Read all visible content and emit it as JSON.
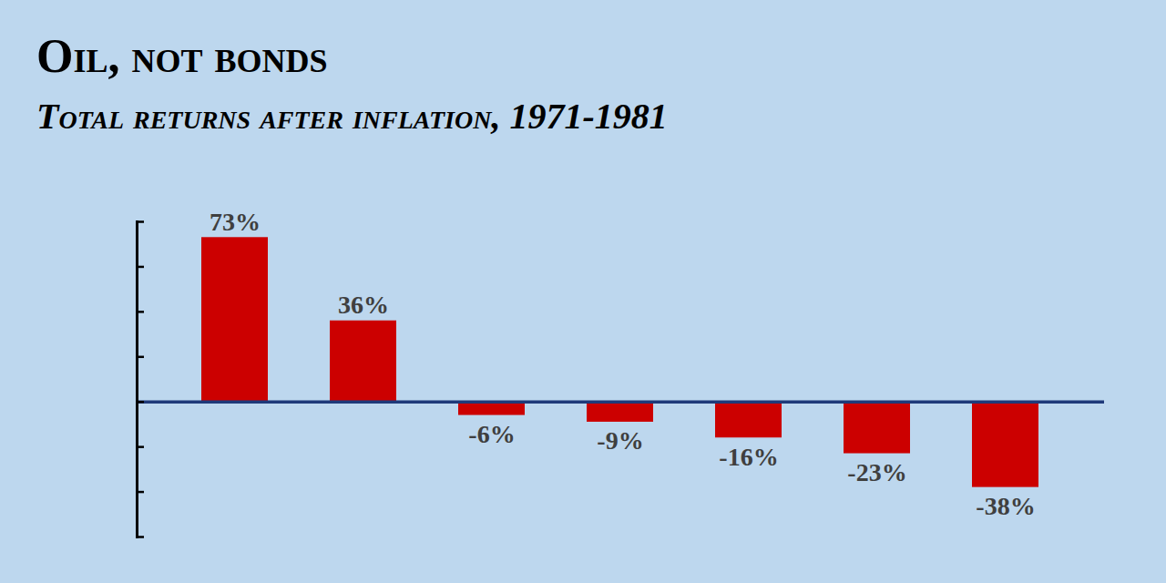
{
  "chart_data": {
    "type": "bar",
    "title": "Oil, not bonds",
    "subtitle": "Total returns after inflation, 1971-1981",
    "categories": [
      null,
      null,
      null,
      null,
      null,
      null,
      null
    ],
    "values": [
      73,
      36,
      -6,
      -9,
      -16,
      -23,
      -38
    ],
    "value_labels": [
      "73%",
      "36%",
      "-6%",
      "-9%",
      "-16%",
      "-23%",
      "-38%"
    ],
    "color": "#cc0000",
    "ylim": [
      -60,
      80
    ],
    "yticks": [
      -60,
      -40,
      -20,
      0,
      20,
      40,
      60,
      80
    ],
    "grid": false,
    "data_labels": true,
    "tick_labels": false
  }
}
